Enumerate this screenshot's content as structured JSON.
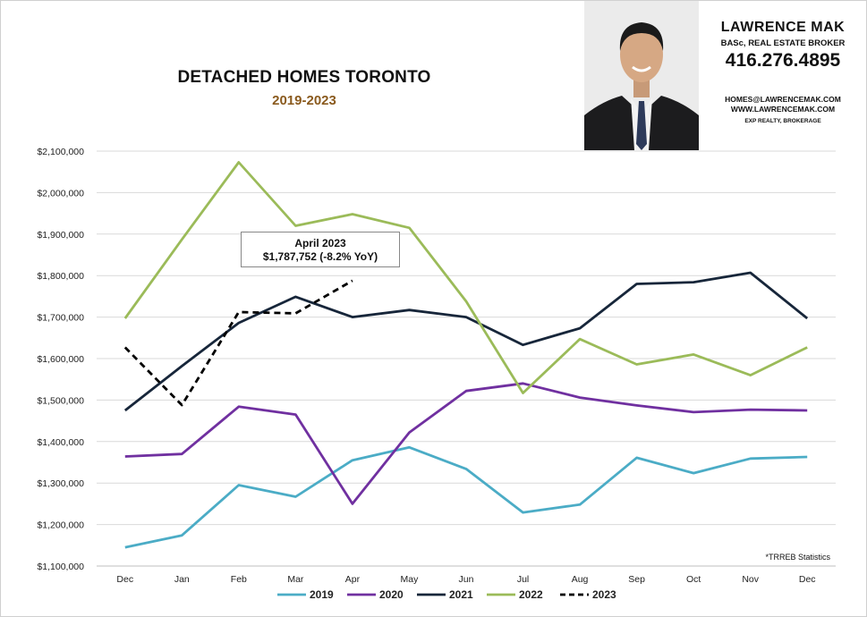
{
  "header": {
    "title": "DETACHED HOMES TORONTO",
    "subtitle": "2019-2023"
  },
  "brand": {
    "name": "LAWRENCE MAK",
    "title": "BASc, REAL ESTATE BROKER",
    "phone": "416.276.4895",
    "email": "HOMES@LAWRENCEMAK.COM",
    "website": "WWW.LAWRENCEMAK.COM",
    "firm": "EXP REALTY, BROKERAGE"
  },
  "annotation": {
    "line1": "April 2023",
    "line2": "$1,787,752  (-8.2%  YoY)"
  },
  "source_note": "*TRREB Statistics",
  "chart_data": {
    "type": "line",
    "title": "DETACHED HOMES TORONTO",
    "subtitle": "2019-2023",
    "xlabel": "",
    "ylabel": "",
    "categories": [
      "Dec",
      "Jan",
      "Feb",
      "Mar",
      "Apr",
      "May",
      "Jun",
      "Jul",
      "Aug",
      "Sep",
      "Oct",
      "Nov",
      "Dec"
    ],
    "ylim": [
      1100000,
      2100000
    ],
    "yticks": [
      1100000,
      1200000,
      1300000,
      1400000,
      1500000,
      1600000,
      1700000,
      1800000,
      1900000,
      2000000,
      2100000
    ],
    "ytick_labels": [
      "$1,100,000",
      "$1,200,000",
      "$1,300,000",
      "$1,400,000",
      "$1,500,000",
      "$1,600,000",
      "$1,700,000",
      "$1,800,000",
      "$1,900,000",
      "$2,000,000",
      "$2,100,000"
    ],
    "grid": true,
    "legend": "bottom",
    "series": [
      {
        "name": "2019",
        "color": "#4bacc6",
        "dash": false,
        "values": [
          1145000,
          1174000,
          1295000,
          1267000,
          1355000,
          1386000,
          1334000,
          1229000,
          1248000,
          1361000,
          1324000,
          1359000,
          1363000
        ]
      },
      {
        "name": "2020",
        "color": "#7030a0",
        "dash": false,
        "values": [
          1364000,
          1370000,
          1484000,
          1465000,
          1250000,
          1422000,
          1522000,
          1540000,
          1506000,
          1487000,
          1471000,
          1477000,
          1475000
        ]
      },
      {
        "name": "2021",
        "color": "#17263a",
        "dash": false,
        "values": [
          1475000,
          1582000,
          1686000,
          1749000,
          1700000,
          1717000,
          1700000,
          1633000,
          1673000,
          1780000,
          1784000,
          1807000,
          1697000
        ]
      },
      {
        "name": "2022",
        "color": "#9bbb59",
        "dash": false,
        "values": [
          1697000,
          1887000,
          2073000,
          1920000,
          1948000,
          1915000,
          1738000,
          1517000,
          1647000,
          1586000,
          1610000,
          1560000,
          1627000
        ]
      },
      {
        "name": "2023",
        "color": "#000000",
        "dash": true,
        "values": [
          1627000,
          1488000,
          1712000,
          1709000,
          1787752,
          null,
          null,
          null,
          null,
          null,
          null,
          null,
          null
        ]
      }
    ]
  }
}
